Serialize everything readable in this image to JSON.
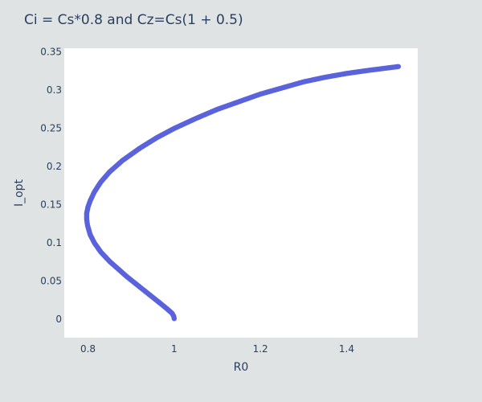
{
  "chart_data": {
    "type": "scatter",
    "title": "Ci = Cs*0.8 and Cz=Cs(1 + 0.5)",
    "xlabel": "R0",
    "ylabel": "I_opt",
    "xlim": [
      0.745,
      1.565
    ],
    "ylim": [
      -0.024,
      0.355
    ],
    "xticks": [
      0.8,
      1,
      1.2,
      1.4
    ],
    "xtick_labels": [
      "0.8",
      "1",
      "1.2",
      "1.4"
    ],
    "yticks": [
      0,
      0.05,
      0.1,
      0.15,
      0.2,
      0.25,
      0.3,
      0.35
    ],
    "ytick_labels": [
      "0",
      "0.05",
      "0.1",
      "0.15",
      "0.2",
      "0.25",
      "0.3",
      "0.35"
    ],
    "grid": false,
    "colors": {
      "marker": "#5a63dc",
      "plot_bg": "#ffffff",
      "paper_bg": "#dfe3e4",
      "text": "#2a3f5f"
    },
    "series": [
      {
        "points": [
          [
            1.0,
            0.001
          ],
          [
            0.999,
            0.004
          ],
          [
            0.995,
            0.008
          ],
          [
            0.985,
            0.013
          ],
          [
            0.97,
            0.02
          ],
          [
            0.95,
            0.029
          ],
          [
            0.93,
            0.038
          ],
          [
            0.91,
            0.047
          ],
          [
            0.89,
            0.056
          ],
          [
            0.87,
            0.066
          ],
          [
            0.85,
            0.076
          ],
          [
            0.83,
            0.088
          ],
          [
            0.815,
            0.1
          ],
          [
            0.805,
            0.111
          ],
          [
            0.799,
            0.123
          ],
          [
            0.797,
            0.131
          ],
          [
            0.797,
            0.139
          ],
          [
            0.8,
            0.147
          ],
          [
            0.805,
            0.155
          ],
          [
            0.815,
            0.167
          ],
          [
            0.83,
            0.18
          ],
          [
            0.85,
            0.193
          ],
          [
            0.88,
            0.208
          ],
          [
            0.92,
            0.224
          ],
          [
            0.96,
            0.238
          ],
          [
            1.0,
            0.25
          ],
          [
            1.05,
            0.263
          ],
          [
            1.1,
            0.275
          ],
          [
            1.15,
            0.285
          ],
          [
            1.2,
            0.295
          ],
          [
            1.25,
            0.303
          ],
          [
            1.3,
            0.311
          ],
          [
            1.35,
            0.317
          ],
          [
            1.4,
            0.322
          ],
          [
            1.45,
            0.326
          ],
          [
            1.52,
            0.331
          ]
        ]
      }
    ]
  }
}
